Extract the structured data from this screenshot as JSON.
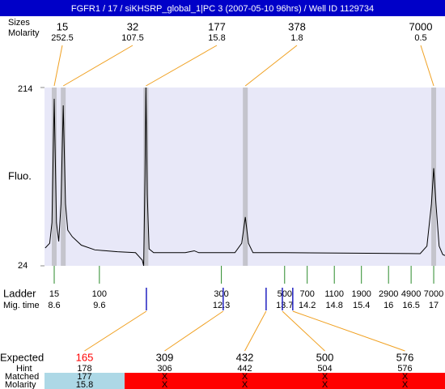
{
  "title": "FGFR1 / 17 / siKHSRP_global_1|PC 3 (2007-05-10 96hrs) / Well ID 1129734",
  "peaks": {
    "size_label": "Sizes",
    "molarity_label": "Molarity",
    "items": [
      {
        "size": 15,
        "molarity": 252.5,
        "time": 8.6
      },
      {
        "size": 32,
        "molarity": 107.5,
        "time": 8.8
      },
      {
        "size": 177,
        "molarity": 15.8,
        "time": 10.63
      },
      {
        "size": 378,
        "molarity": 1.8,
        "time": 12.83
      },
      {
        "size": 7000,
        "molarity": 0.5,
        "time": 17.0
      }
    ]
  },
  "chart_data": {
    "type": "line",
    "y_label": "Fluo.",
    "color": "#000000",
    "x": [
      8.4,
      8.5,
      8.55,
      8.6,
      8.65,
      8.7,
      8.75,
      8.8,
      8.85,
      8.9,
      9.0,
      9.2,
      9.5,
      10.0,
      10.4,
      10.55,
      10.58,
      10.61,
      10.63,
      10.66,
      10.7,
      10.8,
      11.5,
      11.7,
      11.8,
      12.6,
      12.75,
      12.83,
      12.9,
      13.0,
      13.7,
      16.7,
      16.85,
      16.95,
      17.0,
      17.05,
      17.12,
      17.2,
      17.25
    ],
    "values": [
      43,
      48,
      70,
      202,
      70,
      50,
      90,
      195,
      90,
      62,
      55,
      46,
      41,
      39,
      38,
      30,
      24,
      120,
      214,
      100,
      42,
      38,
      38,
      40,
      38,
      38,
      48,
      76,
      48,
      38,
      38,
      37,
      45,
      90,
      128,
      90,
      45,
      36,
      35
    ],
    "xlim": [
      8.385,
      17.25
    ],
    "ylim": [
      24,
      214
    ],
    "yticks": [
      24,
      214
    ]
  },
  "ladder": {
    "label": "Ladder",
    "time_label": "Mig. time",
    "items": [
      {
        "size": 15,
        "time": 8.6
      },
      {
        "size": 100,
        "time": 9.6
      },
      {
        "size": 300,
        "time": 12.3
      },
      {
        "size": 500,
        "time": 13.7
      },
      {
        "size": 700,
        "time": 14.2
      },
      {
        "size": 1100,
        "time": 14.8
      },
      {
        "size": 1900,
        "time": 15.4
      },
      {
        "size": 2900,
        "time": 16
      },
      {
        "size": 4900,
        "time": 16.5
      },
      {
        "size": 7000,
        "time": 17
      }
    ]
  },
  "expected": {
    "labels": [
      "Expected",
      "Hint",
      "Matched",
      "Molarity"
    ],
    "items": [
      {
        "expected": 165,
        "hint": 178,
        "matched": 177,
        "molarity": 15.8,
        "time": 10.64,
        "color": "#ff0000",
        "row_color": "#add8e6"
      },
      {
        "expected": 309,
        "hint": 306,
        "matched": "X",
        "molarity": "X",
        "time": 12.34,
        "color": "#000000",
        "row_color": "#ff0000"
      },
      {
        "expected": 432,
        "hint": 442,
        "matched": "X",
        "molarity": "X",
        "time": 13.29,
        "color": "#000000",
        "row_color": "#ff0000"
      },
      {
        "expected": 500,
        "hint": 504,
        "matched": "X",
        "molarity": "X",
        "time": 13.65,
        "color": "#000000",
        "row_color": "#ff0000"
      },
      {
        "expected": 576,
        "hint": 576,
        "matched": "X",
        "molarity": "X",
        "time": 13.88,
        "color": "#000000",
        "row_color": "#ff0000"
      }
    ]
  }
}
